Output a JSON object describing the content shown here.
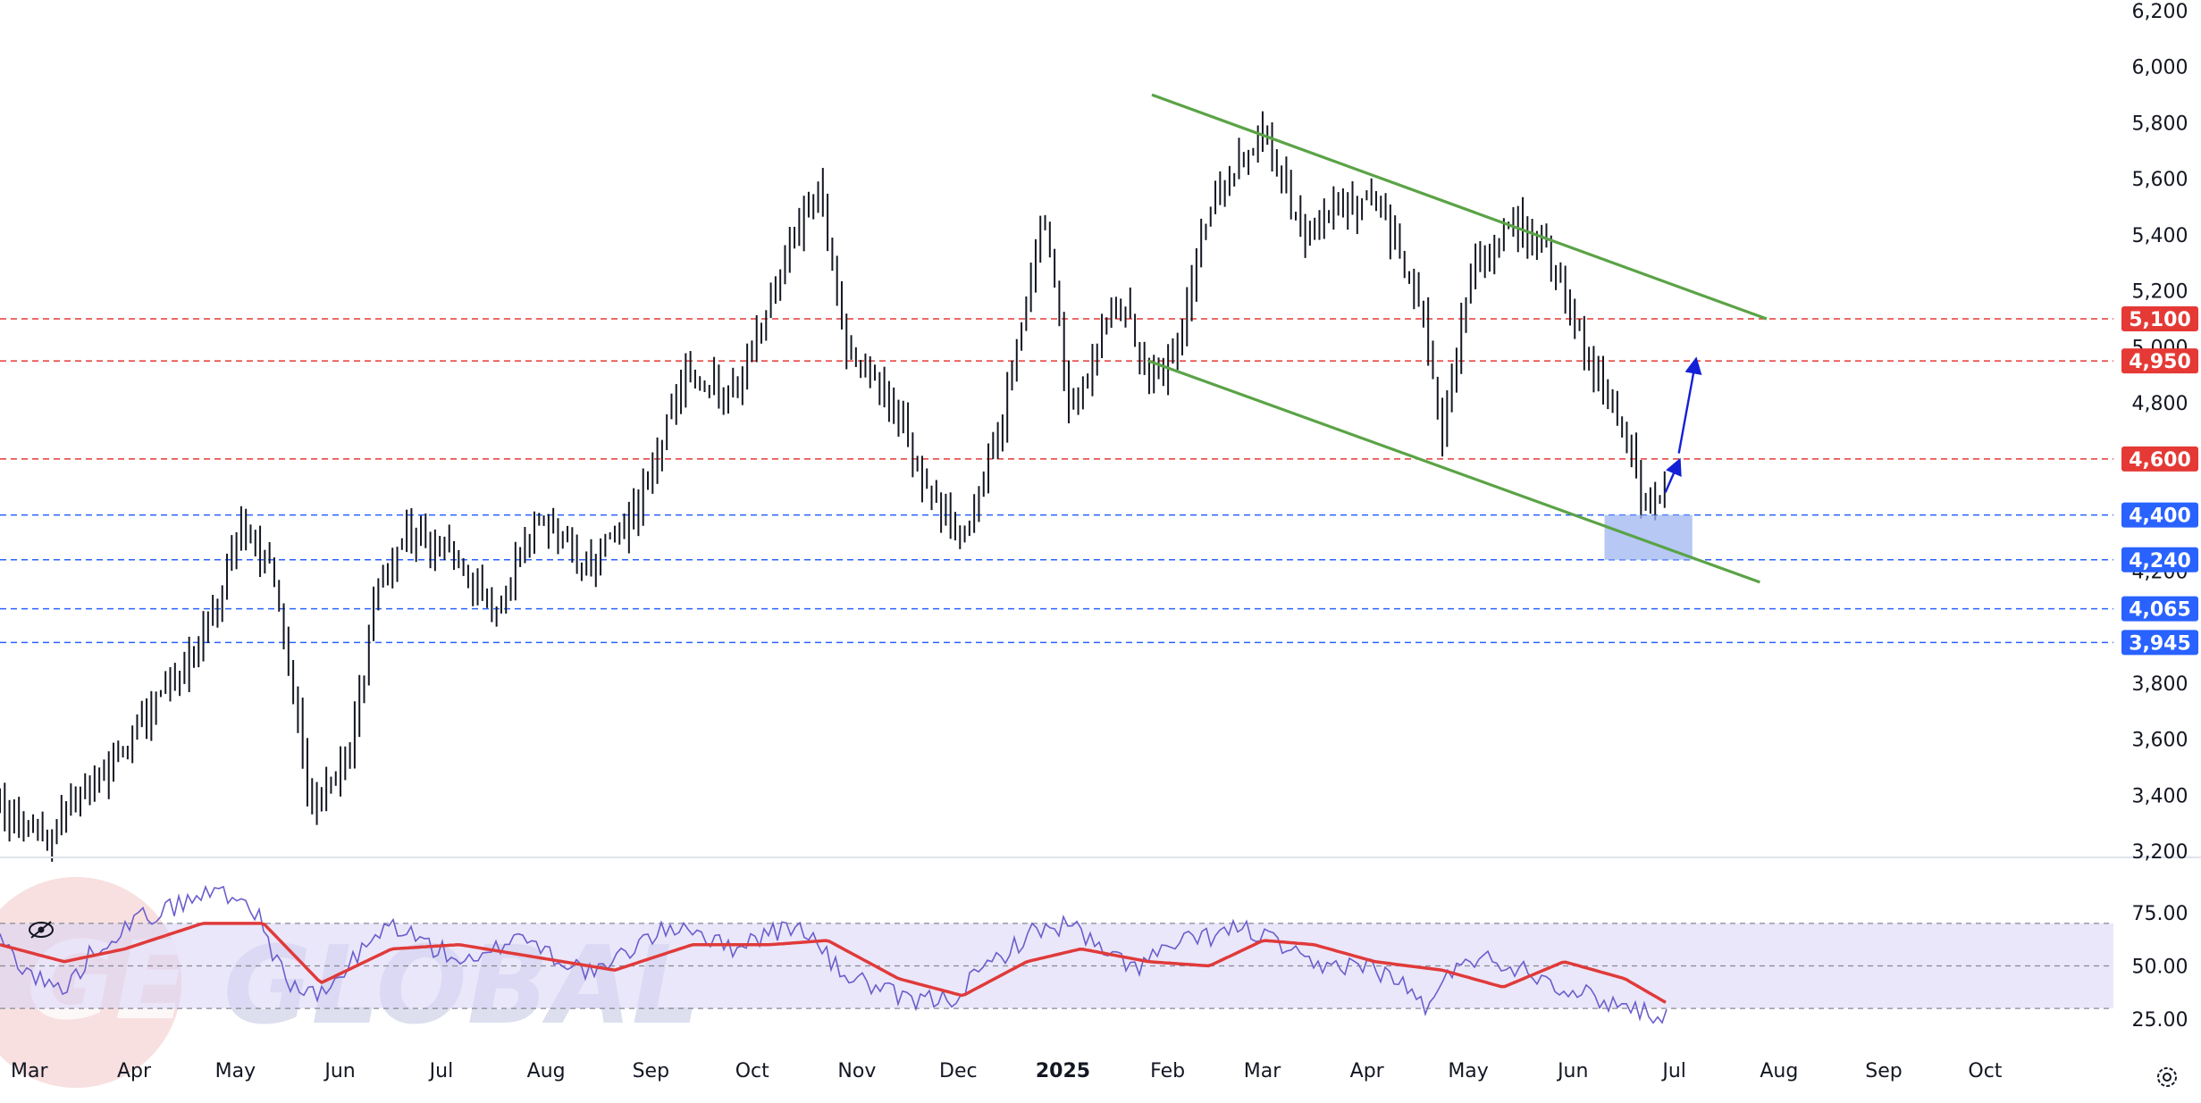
{
  "chart_data": [
    {
      "type": "candlestick",
      "price_axis": {
        "ticks": [
          "6,200",
          "6,000",
          "5,800",
          "5,600",
          "5,400",
          "5,200",
          "5,000",
          "4,800",
          "4,200",
          "3,800",
          "3,600",
          "3,400",
          "3,200"
        ],
        "range": [
          3200,
          6200
        ]
      },
      "time_axis": {
        "ticks": [
          "Mar",
          "Apr",
          "May",
          "Jun",
          "Jul",
          "Aug",
          "Sep",
          "Oct",
          "Nov",
          "Dec",
          "2025",
          "Feb",
          "Mar",
          "Apr",
          "May",
          "Jun",
          "Jul",
          "Aug",
          "Sep",
          "Oct"
        ],
        "bold_tick": "2025"
      },
      "price_anchors": [
        [
          "2024-02-20",
          3350
        ],
        [
          "2024-03-05",
          3250
        ],
        [
          "2024-03-20",
          3450
        ],
        [
          "2024-04-05",
          3700
        ],
        [
          "2024-04-15",
          3850
        ],
        [
          "2024-04-25",
          4100
        ],
        [
          "2024-05-02",
          4400
        ],
        [
          "2024-05-12",
          4150
        ],
        [
          "2024-05-22",
          3350
        ],
        [
          "2024-06-02",
          3500
        ],
        [
          "2024-06-10",
          4100
        ],
        [
          "2024-06-20",
          4350
        ],
        [
          "2024-07-05",
          4250
        ],
        [
          "2024-07-15",
          4050
        ],
        [
          "2024-07-28",
          4400
        ],
        [
          "2024-08-12",
          4200
        ],
        [
          "2024-08-25",
          4400
        ],
        [
          "2024-09-10",
          4900
        ],
        [
          "2024-09-25",
          4850
        ],
        [
          "2024-10-10",
          5350
        ],
        [
          "2024-10-20",
          5550
        ],
        [
          "2024-10-28",
          4950
        ],
        [
          "2024-11-08",
          4850
        ],
        [
          "2024-11-20",
          4500
        ],
        [
          "2024-11-30",
          4300
        ],
        [
          "2024-12-12",
          4700
        ],
        [
          "2024-12-25",
          5500
        ],
        [
          "2025-01-02",
          4750
        ],
        [
          "2025-01-15",
          5200
        ],
        [
          "2025-01-25",
          4900
        ],
        [
          "2025-02-02",
          4950
        ],
        [
          "2025-02-10",
          5450
        ],
        [
          "2025-02-20",
          5650
        ],
        [
          "2025-03-01",
          5750
        ],
        [
          "2025-03-12",
          5400
        ],
        [
          "2025-03-20",
          5500
        ],
        [
          "2025-04-02",
          5500
        ],
        [
          "2025-04-15",
          5200
        ],
        [
          "2025-04-22",
          4700
        ],
        [
          "2025-05-01",
          5300
        ],
        [
          "2025-05-15",
          5450
        ],
        [
          "2025-05-25",
          5300
        ],
        [
          "2025-06-05",
          4950
        ],
        [
          "2025-06-15",
          4700
        ],
        [
          "2025-06-22",
          4400
        ],
        [
          "2025-06-27",
          4450
        ]
      ],
      "horizontal_levels": [
        {
          "price": 5100,
          "label": "5,100",
          "color": "#e53935",
          "style": "dashed"
        },
        {
          "price": 4950,
          "label": "4,950",
          "color": "#e53935",
          "style": "dashed"
        },
        {
          "price": 4600,
          "label": "4,600",
          "color": "#e53935",
          "style": "dashed"
        },
        {
          "price": 4400,
          "label": "4,400",
          "color": "#2962ff",
          "style": "dashed"
        },
        {
          "price": 4240,
          "label": "4,240",
          "color": "#2962ff",
          "style": "dashed"
        },
        {
          "price": 4065,
          "label": "4,065",
          "color": "#2962ff",
          "style": "dashed"
        },
        {
          "price": 3945,
          "label": "3,945",
          "color": "#2962ff",
          "style": "dashed"
        }
      ],
      "trendlines": [
        {
          "from": [
            "2025-01-26",
            5900
          ],
          "to": [
            "2025-07-27",
            5100
          ],
          "color": "#5aa346"
        },
        {
          "from": [
            "2025-01-25",
            4950
          ],
          "to": [
            "2025-07-25",
            4160
          ],
          "color": "#5aa346"
        }
      ],
      "support_zone": {
        "from": "2025-06-09",
        "to": "2025-07-05",
        "low": 4240,
        "high": 4400,
        "color": "#9fb5f2"
      },
      "projection_arrows": [
        {
          "from": [
            "2025-06-27",
            4480
          ],
          "to": [
            "2025-07-01",
            4590
          ]
        },
        {
          "from": [
            "2025-07-01",
            4620
          ],
          "to": [
            "2025-07-06",
            4950
          ]
        }
      ]
    },
    {
      "type": "line",
      "name": "oscillator",
      "y_axis_ticks": [
        "75.00",
        "50.00",
        "25.00"
      ],
      "y_range": [
        20,
        85
      ],
      "band": [
        30,
        70
      ],
      "midline": 50,
      "fast_line_color": "#6a5ecc",
      "slow_line_color": "#e03a3a",
      "fast_anchors": [
        [
          "2024-02-20",
          62
        ],
        [
          "2024-03-01",
          45
        ],
        [
          "2024-03-10",
          38
        ],
        [
          "2024-03-20",
          60
        ],
        [
          "2024-04-01",
          72
        ],
        [
          "2024-04-15",
          80
        ],
        [
          "2024-04-25",
          86
        ],
        [
          "2024-05-05",
          78
        ],
        [
          "2024-05-15",
          42
        ],
        [
          "2024-05-25",
          35
        ],
        [
          "2024-06-05",
          55
        ],
        [
          "2024-06-15",
          70
        ],
        [
          "2024-06-28",
          58
        ],
        [
          "2024-07-10",
          50
        ],
        [
          "2024-07-22",
          66
        ],
        [
          "2024-08-05",
          52
        ],
        [
          "2024-08-15",
          46
        ],
        [
          "2024-08-28",
          62
        ],
        [
          "2024-09-10",
          70
        ],
        [
          "2024-09-22",
          58
        ],
        [
          "2024-10-05",
          66
        ],
        [
          "2024-10-15",
          68
        ],
        [
          "2024-10-25",
          48
        ],
        [
          "2024-11-05",
          40
        ],
        [
          "2024-11-15",
          33
        ],
        [
          "2024-11-28",
          35
        ],
        [
          "2024-12-10",
          52
        ],
        [
          "2024-12-22",
          66
        ],
        [
          "2025-01-02",
          70
        ],
        [
          "2025-01-12",
          55
        ],
        [
          "2025-01-22",
          50
        ],
        [
          "2025-02-02",
          60
        ],
        [
          "2025-02-12",
          64
        ],
        [
          "2025-02-22",
          68
        ],
        [
          "2025-03-05",
          60
        ],
        [
          "2025-03-15",
          48
        ],
        [
          "2025-03-28",
          52
        ],
        [
          "2025-04-08",
          44
        ],
        [
          "2025-04-18",
          30
        ],
        [
          "2025-04-28",
          55
        ],
        [
          "2025-05-08",
          52
        ],
        [
          "2025-05-18",
          48
        ],
        [
          "2025-05-28",
          40
        ],
        [
          "2025-06-08",
          34
        ],
        [
          "2025-06-18",
          30
        ],
        [
          "2025-06-28",
          26
        ]
      ],
      "slow_anchors": [
        [
          "2024-02-20",
          60
        ],
        [
          "2024-03-10",
          52
        ],
        [
          "2024-03-28",
          58
        ],
        [
          "2024-04-20",
          70
        ],
        [
          "2024-05-08",
          70
        ],
        [
          "2024-05-25",
          42
        ],
        [
          "2024-06-15",
          58
        ],
        [
          "2024-07-05",
          60
        ],
        [
          "2024-07-28",
          54
        ],
        [
          "2024-08-20",
          48
        ],
        [
          "2024-09-12",
          60
        ],
        [
          "2024-10-05",
          60
        ],
        [
          "2024-10-22",
          62
        ],
        [
          "2024-11-12",
          44
        ],
        [
          "2024-12-01",
          36
        ],
        [
          "2024-12-20",
          52
        ],
        [
          "2025-01-05",
          58
        ],
        [
          "2025-01-25",
          52
        ],
        [
          "2025-02-12",
          50
        ],
        [
          "2025-02-28",
          62
        ],
        [
          "2025-03-15",
          60
        ],
        [
          "2025-04-02",
          52
        ],
        [
          "2025-04-22",
          48
        ],
        [
          "2025-05-10",
          40
        ],
        [
          "2025-05-28",
          52
        ],
        [
          "2025-06-15",
          44
        ],
        [
          "2025-06-28",
          32
        ]
      ]
    }
  ],
  "watermark": {
    "text": "GLOBAL",
    "logo_text": "GE"
  },
  "colors": {
    "candle": "#131722",
    "grid_sep": "#e0e3eb",
    "band_fill": "#d8d3f5",
    "red_badge": "#e53935",
    "blue_badge": "#2962ff"
  },
  "icons": {
    "visibility": "eye-slash-icon",
    "settings": "gear-icon"
  }
}
